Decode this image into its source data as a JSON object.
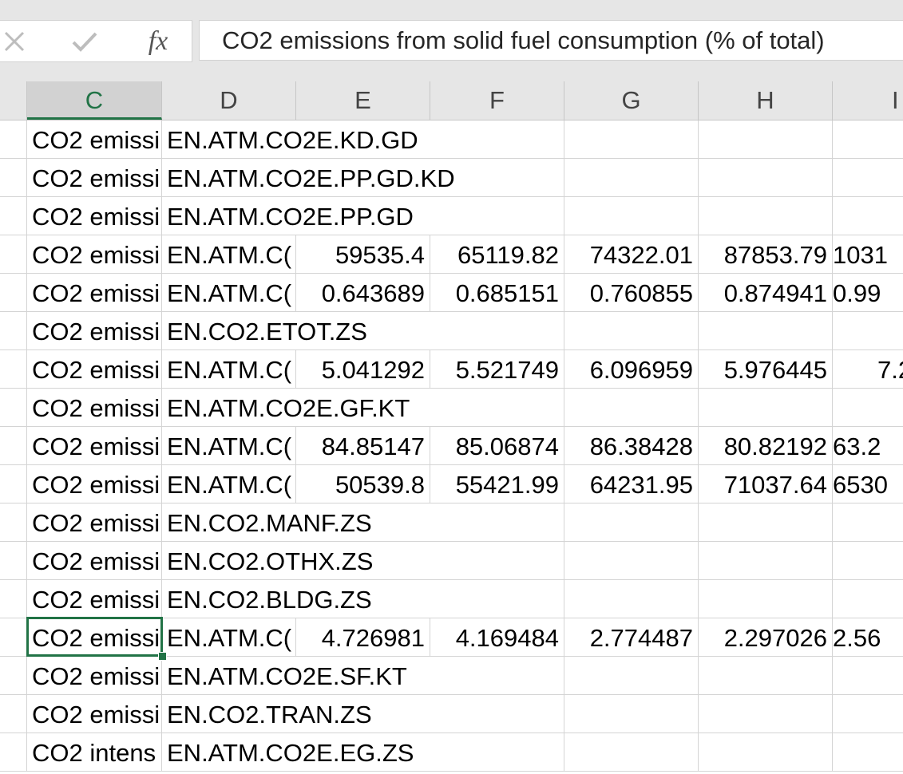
{
  "formula_bar": {
    "cancel_glyph": "✕",
    "enter_glyph": "✔",
    "fx_label": "fx",
    "content": "CO2 emissions from solid fuel consumption (% of total)"
  },
  "columns": [
    "C",
    "D",
    "E",
    "F",
    "G",
    "H",
    "I"
  ],
  "selected_column": "C",
  "rows": [
    {
      "c": "CO2 emissi",
      "d": "EN.ATM.CO2E.KD.GD",
      "e": "",
      "f": "",
      "g": "",
      "h": "",
      "i": ""
    },
    {
      "c": "CO2 emissi",
      "d": "EN.ATM.CO2E.PP.GD.KD",
      "e": "",
      "f": "",
      "g": "",
      "h": "",
      "i": ""
    },
    {
      "c": "CO2 emissi",
      "d": "EN.ATM.CO2E.PP.GD",
      "e": "",
      "f": "",
      "g": "",
      "h": "",
      "i": ""
    },
    {
      "c": "CO2 emissi",
      "d": "EN.ATM.C(",
      "e": "59535.4",
      "f": "65119.82",
      "g": "74322.01",
      "h": "87853.79",
      "i": "1031"
    },
    {
      "c": "CO2 emissi",
      "d": "EN.ATM.C(",
      "e": "0.643689",
      "f": "0.685151",
      "g": "0.760855",
      "h": "0.874941",
      "i": "0.99"
    },
    {
      "c": "CO2 emissi",
      "d": "EN.CO2.ETOT.ZS",
      "e": "",
      "f": "",
      "g": "",
      "h": "",
      "i": ""
    },
    {
      "c": "CO2 emissi",
      "d": "EN.ATM.C(",
      "e": "5.041292",
      "f": "5.521749",
      "g": "6.096959",
      "h": "5.976445",
      "i": "7.2"
    },
    {
      "c": "CO2 emissi",
      "d": "EN.ATM.CO2E.GF.KT",
      "e": "",
      "f": "",
      "g": "",
      "h": "",
      "i": ""
    },
    {
      "c": "CO2 emissi",
      "d": "EN.ATM.C(",
      "e": "84.85147",
      "f": "85.06874",
      "g": "86.38428",
      "h": "80.82192",
      "i": "63.2"
    },
    {
      "c": "CO2 emissi",
      "d": "EN.ATM.C(",
      "e": "50539.8",
      "f": "55421.99",
      "g": "64231.95",
      "h": "71037.64",
      "i": "6530"
    },
    {
      "c": "CO2 emissi",
      "d": "EN.CO2.MANF.ZS",
      "e": "",
      "f": "",
      "g": "",
      "h": "",
      "i": ""
    },
    {
      "c": "CO2 emissi",
      "d": "EN.CO2.OTHX.ZS",
      "e": "",
      "f": "",
      "g": "",
      "h": "",
      "i": ""
    },
    {
      "c": "CO2 emissi",
      "d": "EN.CO2.BLDG.ZS",
      "e": "",
      "f": "",
      "g": "",
      "h": "",
      "i": ""
    },
    {
      "c": "CO2 emissi",
      "d": "EN.ATM.C(",
      "e": "4.726981",
      "f": "4.169484",
      "g": "2.774487",
      "h": "2.297026",
      "i": "2.56"
    },
    {
      "c": "CO2 emissi",
      "d": "EN.ATM.CO2E.SF.KT",
      "e": "",
      "f": "",
      "g": "",
      "h": "",
      "i": ""
    },
    {
      "c": "CO2 emissi",
      "d": "EN.CO2.TRAN.ZS",
      "e": "",
      "f": "",
      "g": "",
      "h": "",
      "i": ""
    },
    {
      "c": "CO2 intens",
      "d": "EN.ATM.CO2E.EG.ZS",
      "e": "",
      "f": "",
      "g": "",
      "h": "",
      "i": ""
    }
  ],
  "active_cell_row_index": 13,
  "colors": {
    "accent": "#217346",
    "header_bg": "#e6e6e6",
    "gridline": "#d4d4d4"
  }
}
